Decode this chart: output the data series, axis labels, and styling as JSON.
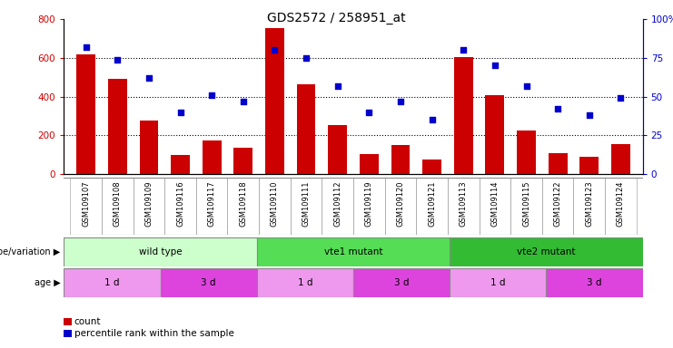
{
  "title": "GDS2572 / 258951_at",
  "samples": [
    "GSM109107",
    "GSM109108",
    "GSM109109",
    "GSM109116",
    "GSM109117",
    "GSM109118",
    "GSM109110",
    "GSM109111",
    "GSM109112",
    "GSM109119",
    "GSM109120",
    "GSM109121",
    "GSM109113",
    "GSM109114",
    "GSM109115",
    "GSM109122",
    "GSM109123",
    "GSM109124"
  ],
  "counts": [
    620,
    490,
    275,
    100,
    175,
    135,
    755,
    465,
    255,
    105,
    150,
    75,
    605,
    405,
    225,
    110,
    90,
    155
  ],
  "percentiles": [
    82,
    74,
    62,
    40,
    51,
    47,
    80,
    75,
    57,
    40,
    47,
    35,
    80,
    70,
    57,
    42,
    38,
    49
  ],
  "ylim_left": [
    0,
    800
  ],
  "ylim_right": [
    0,
    100
  ],
  "yticks_left": [
    0,
    200,
    400,
    600,
    800
  ],
  "yticks_right": [
    0,
    25,
    50,
    75,
    100
  ],
  "bar_color": "#cc0000",
  "scatter_color": "#0000cc",
  "bg_color": "#ffffff",
  "genotype_groups": [
    {
      "label": "wild type",
      "start": 0,
      "end": 6,
      "color": "#ccffcc"
    },
    {
      "label": "vte1 mutant",
      "start": 6,
      "end": 12,
      "color": "#55dd55"
    },
    {
      "label": "vte2 mutant",
      "start": 12,
      "end": 18,
      "color": "#33bb33"
    }
  ],
  "age_groups": [
    {
      "label": "1 d",
      "start": 0,
      "end": 3,
      "color": "#ee99ee"
    },
    {
      "label": "3 d",
      "start": 3,
      "end": 6,
      "color": "#dd44dd"
    },
    {
      "label": "1 d",
      "start": 6,
      "end": 9,
      "color": "#ee99ee"
    },
    {
      "label": "3 d",
      "start": 9,
      "end": 12,
      "color": "#dd44dd"
    },
    {
      "label": "1 d",
      "start": 12,
      "end": 15,
      "color": "#ee99ee"
    },
    {
      "label": "3 d",
      "start": 15,
      "end": 18,
      "color": "#dd44dd"
    }
  ],
  "xtick_bg": "#d8d8d8",
  "separator_color": "#888888"
}
